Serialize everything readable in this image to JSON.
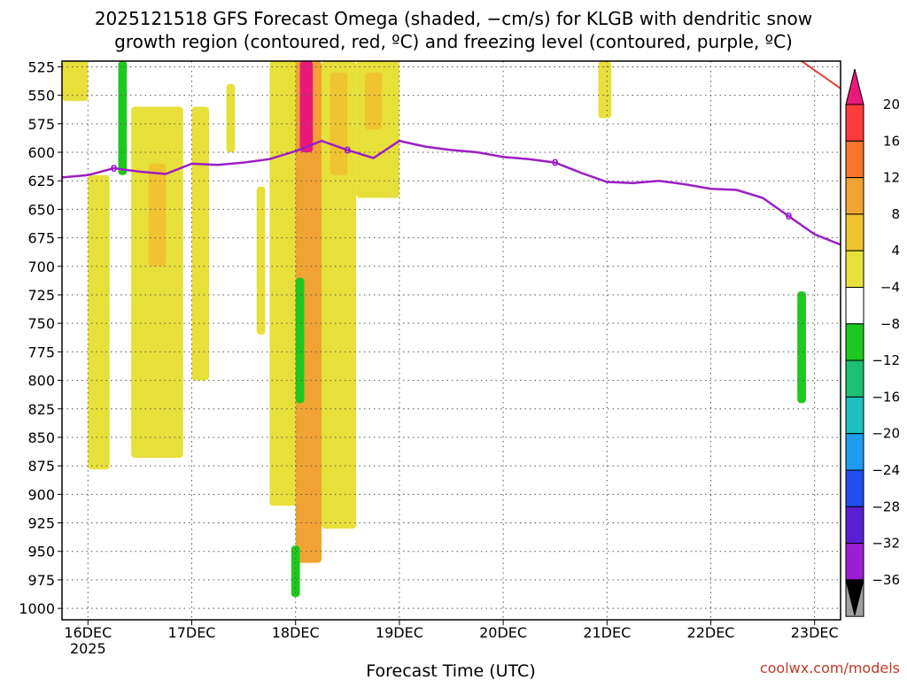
{
  "title": {
    "line1": "2025121518 GFS Forecast Omega (shaded, −cm/s) for KLGB with dendritic snow",
    "line2": "growth region (contoured, red, ºC) and freezing level (contoured, purple, ºC)"
  },
  "credit": "coolwx.com/models",
  "chart_data": {
    "type": "heatmap",
    "title": "2025121518 GFS Forecast Omega (shaded, −cm/s) for KLGB with dendritic snow growth region (contoured, red, ºC) and freezing level (contoured, purple, ºC)",
    "xlabel": "Forecast Time (UTC)",
    "ylabel": "",
    "x_ticks": [
      "16DEC",
      "17DEC",
      "18DEC",
      "19DEC",
      "20DEC",
      "21DEC",
      "22DEC",
      "23DEC"
    ],
    "x_year_label": "2025",
    "x_range": [
      "2025-12-15T18:00",
      "2025-12-23T06:00"
    ],
    "y_ticks": [
      525,
      550,
      575,
      600,
      625,
      650,
      675,
      700,
      725,
      750,
      775,
      800,
      825,
      850,
      875,
      900,
      925,
      950,
      975,
      1000
    ],
    "y_range": [
      1010,
      520
    ],
    "grid": true,
    "colorbar": {
      "levels": [
        20,
        16,
        12,
        8,
        4,
        -4,
        -8,
        -12,
        -16,
        -20,
        -24,
        -28,
        -32,
        -36
      ],
      "colors": [
        "#ff3b3b",
        "#f5762a",
        "#f0a333",
        "#f0c330",
        "#e8e03a",
        "#ffffff",
        "#1ec81e",
        "#1dbf73",
        "#1fbfbf",
        "#1f9bf0",
        "#1f4ff0",
        "#5a1fd0",
        "#9b1fd0",
        "#a0a0a0"
      ],
      "top_color": "#e8197a",
      "bottom_color": "#000000"
    },
    "freezing_level": {
      "label": "0",
      "color": "#9b1fc4",
      "points": [
        {
          "t": "2025-12-15T18:00",
          "p": 622
        },
        {
          "t": "2025-12-16T00:00",
          "p": 620
        },
        {
          "t": "2025-12-16T06:00",
          "p": 614
        },
        {
          "t": "2025-12-16T12:00",
          "p": 617
        },
        {
          "t": "2025-12-16T18:00",
          "p": 619
        },
        {
          "t": "2025-12-17T00:00",
          "p": 610
        },
        {
          "t": "2025-12-17T06:00",
          "p": 611
        },
        {
          "t": "2025-12-17T12:00",
          "p": 609
        },
        {
          "t": "2025-12-17T18:00",
          "p": 606
        },
        {
          "t": "2025-12-18T00:00",
          "p": 599
        },
        {
          "t": "2025-12-18T06:00",
          "p": 590
        },
        {
          "t": "2025-12-18T12:00",
          "p": 598
        },
        {
          "t": "2025-12-18T18:00",
          "p": 605
        },
        {
          "t": "2025-12-19T00:00",
          "p": 590
        },
        {
          "t": "2025-12-19T06:00",
          "p": 595
        },
        {
          "t": "2025-12-19T12:00",
          "p": 598
        },
        {
          "t": "2025-12-19T18:00",
          "p": 600
        },
        {
          "t": "2025-12-20T00:00",
          "p": 604
        },
        {
          "t": "2025-12-20T06:00",
          "p": 606
        },
        {
          "t": "2025-12-20T12:00",
          "p": 609
        },
        {
          "t": "2025-12-20T18:00",
          "p": 618
        },
        {
          "t": "2025-12-21T00:00",
          "p": 626
        },
        {
          "t": "2025-12-21T06:00",
          "p": 627
        },
        {
          "t": "2025-12-21T12:00",
          "p": 625
        },
        {
          "t": "2025-12-21T18:00",
          "p": 628
        },
        {
          "t": "2025-12-22T00:00",
          "p": 632
        },
        {
          "t": "2025-12-22T06:00",
          "p": 633
        },
        {
          "t": "2025-12-22T12:00",
          "p": 640
        },
        {
          "t": "2025-12-22T18:00",
          "p": 656
        },
        {
          "t": "2025-12-23T00:00",
          "p": 672
        },
        {
          "t": "2025-12-23T06:00",
          "p": 681
        }
      ]
    },
    "dgz_contour": {
      "color": "#e8413a",
      "points": [
        {
          "t": "2025-12-22T21:00",
          "p": 520
        },
        {
          "t": "2025-12-23T00:00",
          "p": 528
        },
        {
          "t": "2025-12-23T03:00",
          "p": 536
        },
        {
          "t": "2025-12-23T06:00",
          "p": 544
        }
      ]
    },
    "omega_regions": [
      {
        "t0": "2025-12-15T18:00",
        "t1": "2025-12-16T00:00",
        "p_top": 520,
        "p_bot": 555,
        "value": 5
      },
      {
        "t0": "2025-12-16T00:00",
        "t1": "2025-12-16T05:00",
        "p_top": 620,
        "p_bot": 878,
        "value": 5
      },
      {
        "t0": "2025-12-16T07:00",
        "t1": "2025-12-16T09:00",
        "p_top": 520,
        "p_bot": 620,
        "value": -6
      },
      {
        "t0": "2025-12-16T10:00",
        "t1": "2025-12-16T22:00",
        "p_top": 560,
        "p_bot": 868,
        "value": 5
      },
      {
        "t0": "2025-12-16T14:00",
        "t1": "2025-12-16T18:00",
        "p_top": 610,
        "p_bot": 700,
        "value": 9
      },
      {
        "t0": "2025-12-17T00:00",
        "t1": "2025-12-17T04:00",
        "p_top": 560,
        "p_bot": 800,
        "value": 5
      },
      {
        "t0": "2025-12-17T08:00",
        "t1": "2025-12-17T10:00",
        "p_top": 540,
        "p_bot": 600,
        "value": 5
      },
      {
        "t0": "2025-12-17T15:00",
        "t1": "2025-12-17T17:00",
        "p_top": 630,
        "p_bot": 760,
        "value": 5
      },
      {
        "t0": "2025-12-17T18:00",
        "t1": "2025-12-18T02:00",
        "p_top": 520,
        "p_bot": 910,
        "value": 6
      },
      {
        "t0": "2025-12-18T00:00",
        "t1": "2025-12-18T06:00",
        "p_top": 520,
        "p_bot": 960,
        "value": 14
      },
      {
        "t0": "2025-12-18T01:00",
        "t1": "2025-12-18T04:00",
        "p_top": 520,
        "p_bot": 600,
        "value": 22
      },
      {
        "t0": "2025-12-18T00:00",
        "t1": "2025-12-18T02:00",
        "p_top": 710,
        "p_bot": 820,
        "value": -6
      },
      {
        "t0": "2025-12-17T23:00",
        "t1": "2025-12-18T01:00",
        "p_top": 945,
        "p_bot": 990,
        "value": -6
      },
      {
        "t0": "2025-12-18T01:00",
        "t1": "2025-12-18T04:00",
        "p_top": 885,
        "p_bot": 960,
        "value": 14
      },
      {
        "t0": "2025-12-18T06:00",
        "t1": "2025-12-18T14:00",
        "p_top": 520,
        "p_bot": 930,
        "value": 6
      },
      {
        "t0": "2025-12-18T08:00",
        "t1": "2025-12-18T12:00",
        "p_top": 530,
        "p_bot": 620,
        "value": 10
      },
      {
        "t0": "2025-12-18T14:00",
        "t1": "2025-12-19T00:00",
        "p_top": 520,
        "p_bot": 640,
        "value": 5
      },
      {
        "t0": "2025-12-18T16:00",
        "t1": "2025-12-18T20:00",
        "p_top": 530,
        "p_bot": 580,
        "value": 9
      },
      {
        "t0": "2025-12-20T22:00",
        "t1": "2025-12-21T01:00",
        "p_top": 520,
        "p_bot": 570,
        "value": 5
      },
      {
        "t0": "2025-12-22T20:00",
        "t1": "2025-12-22T22:00",
        "p_top": 722,
        "p_bot": 820,
        "value": -6
      }
    ],
    "surface": {
      "color": "#a0522d",
      "p": 1010
    }
  }
}
